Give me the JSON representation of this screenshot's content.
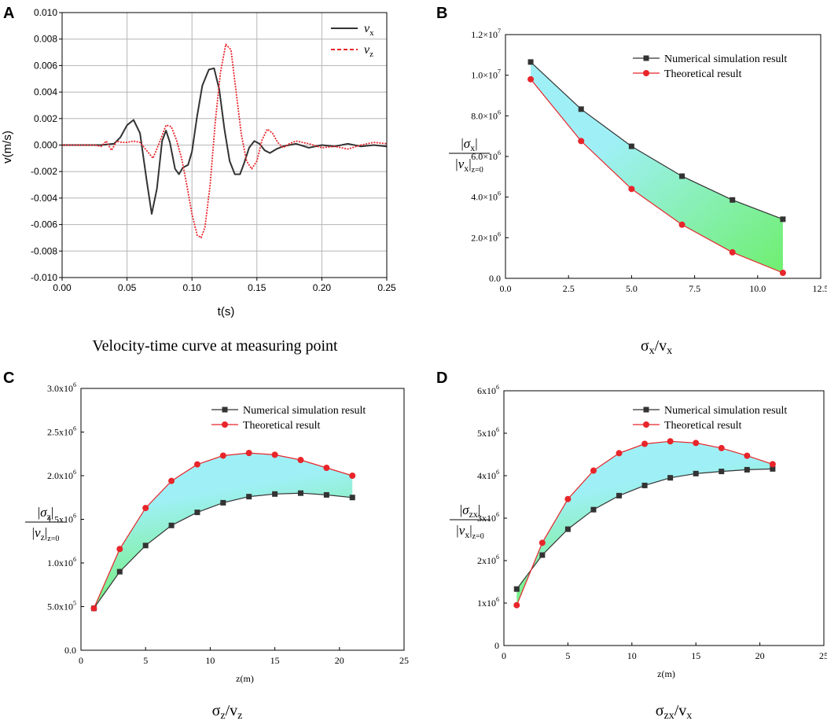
{
  "chart_data": [
    {
      "panel": "A",
      "type": "line",
      "xlabel": "t(s)",
      "ylabel": "v(m/s)",
      "xlim": [
        0,
        0.25
      ],
      "ylim": [
        -0.01,
        0.01
      ],
      "xticks": [
        "0.00",
        "0.05",
        "0.10",
        "0.15",
        "0.20",
        "0.25"
      ],
      "yticks": [
        "0.010",
        "0.008",
        "0.006",
        "0.004",
        "0.002",
        "0.000",
        "-0.002",
        "-0.004",
        "-0.006",
        "-0.008",
        "-0.010"
      ],
      "grid": true,
      "legend": "top-right",
      "caption": "Velocity-time curve at measuring point",
      "series": [
        {
          "name": "vx",
          "legend_main": "v",
          "legend_sub": "x",
          "color": "#333333",
          "style": "solid",
          "x": [
            0,
            0.03,
            0.04,
            0.045,
            0.05,
            0.055,
            0.06,
            0.065,
            0.069,
            0.073,
            0.077,
            0.08,
            0.083,
            0.087,
            0.09,
            0.093,
            0.097,
            0.1,
            0.104,
            0.108,
            0.113,
            0.117,
            0.121,
            0.125,
            0.129,
            0.133,
            0.137,
            0.14,
            0.144,
            0.148,
            0.152,
            0.156,
            0.16,
            0.165,
            0.17,
            0.18,
            0.19,
            0.2,
            0.21,
            0.22,
            0.23,
            0.24,
            0.25
          ],
          "y": [
            0,
            0,
            0.0001,
            0.0006,
            0.0015,
            0.0019,
            0.0009,
            -0.0026,
            -0.0052,
            -0.0033,
            0.0003,
            0.0011,
            0.0002,
            -0.0018,
            -0.0022,
            -0.0017,
            -0.0015,
            -0.0005,
            0.0022,
            0.0045,
            0.0057,
            0.0058,
            0.0042,
            0.0012,
            -0.0012,
            -0.0022,
            -0.0022,
            -0.0014,
            -0.0002,
            0.0003,
            0.0001,
            -0.0004,
            -0.0006,
            -0.0003,
            -0.0001,
            0.0001,
            -0.0002,
            0,
            -0.0001,
            0.0001,
            -0.0001,
            0,
            -0.0001
          ]
        },
        {
          "name": "vz",
          "legend_main": "v",
          "legend_sub": "z",
          "color": "#e8252a",
          "style": "dashed",
          "x": [
            0,
            0.025,
            0.03,
            0.034,
            0.038,
            0.042,
            0.046,
            0.05,
            0.055,
            0.06,
            0.065,
            0.07,
            0.075,
            0.08,
            0.084,
            0.088,
            0.092,
            0.096,
            0.1,
            0.104,
            0.107,
            0.11,
            0.114,
            0.118,
            0.122,
            0.126,
            0.13,
            0.134,
            0.138,
            0.142,
            0.146,
            0.15,
            0.154,
            0.158,
            0.162,
            0.166,
            0.17,
            0.175,
            0.18,
            0.185,
            0.19,
            0.2,
            0.21,
            0.22,
            0.23,
            0.24,
            0.25
          ],
          "y": [
            0,
            0,
            -0.0001,
            0.0003,
            -0.0004,
            0.0003,
            0.0002,
            0.0002,
            0.0003,
            0.0002,
            -0.0004,
            -0.001,
            0.0002,
            0.0015,
            0.0014,
            0.0004,
            -0.001,
            -0.003,
            -0.0052,
            -0.0068,
            -0.007,
            -0.0062,
            -0.003,
            0.0018,
            0.0055,
            0.0076,
            0.0072,
            0.004,
            0.0008,
            -0.0012,
            -0.0018,
            -0.0012,
            0.0004,
            0.0012,
            0.0009,
            0.0002,
            -0.0002,
            0.0001,
            0.0003,
            0.0002,
            0.0001,
            -0.0002,
            -0.0001,
            -0.0003,
            0.0,
            0.0002,
            0.0001
          ]
        }
      ]
    },
    {
      "panel": "B",
      "type": "line",
      "xlim": [
        0,
        12.5
      ],
      "ylim": [
        0,
        12000000
      ],
      "xticks": [
        "0.0",
        "2.5",
        "5.0",
        "7.5",
        "10.0",
        "12.5"
      ],
      "yticks": [
        {
          "mant": "0.0",
          "exp": ""
        },
        {
          "mant": "2.0×10",
          "exp": "6"
        },
        {
          "mant": "4.0×10",
          "exp": "6"
        },
        {
          "mant": "6.0×10",
          "exp": "6"
        },
        {
          "mant": "8.0×10",
          "exp": "6"
        },
        {
          "mant": "1.0×10",
          "exp": "7"
        },
        {
          "mant": "1.2×10",
          "exp": "7"
        }
      ],
      "ylabel": {
        "num": "σ",
        "num_sub": "x",
        "den": "v",
        "den_sub": "x",
        "den_eval": "z=0"
      },
      "legend": "top-right",
      "fill_colors": [
        "#9ff0f6",
        "#6fef6f"
      ],
      "caption": {
        "main": "σ",
        "sub1": "x",
        "mid": "/v",
        "sub2": "x"
      },
      "x": [
        1,
        3,
        5,
        7,
        9,
        11
      ],
      "series": [
        {
          "name": "Numerical simulation result",
          "marker": "square",
          "color": "#333333",
          "values": [
            10650000,
            8330000,
            6500000,
            5030000,
            3860000,
            2910000
          ]
        },
        {
          "name": "Theoretical result",
          "marker": "circle",
          "color": "#e8252a",
          "values": [
            9800000,
            6760000,
            4400000,
            2640000,
            1280000,
            270000
          ]
        }
      ]
    },
    {
      "panel": "C",
      "type": "line",
      "xlabel": "z(m)",
      "xlim": [
        0,
        25
      ],
      "ylim": [
        0,
        3000000
      ],
      "xticks": [
        "0",
        "5",
        "10",
        "15",
        "20",
        "25"
      ],
      "yticks": [
        {
          "mant": "0.0",
          "exp": ""
        },
        {
          "mant": "5.0x10",
          "exp": "5"
        },
        {
          "mant": "1.0x10",
          "exp": "6"
        },
        {
          "mant": "1.5x10",
          "exp": "6"
        },
        {
          "mant": "2.0x10",
          "exp": "6"
        },
        {
          "mant": "2.5x10",
          "exp": "6"
        },
        {
          "mant": "3.0x10",
          "exp": "6"
        }
      ],
      "ylabel": {
        "num": "σ",
        "num_sub": "z",
        "den": "v",
        "den_sub": "z",
        "den_eval": "z=0"
      },
      "legend": "top-right",
      "fill_colors": [
        "#9ff0f6",
        "#6fef6f"
      ],
      "caption": {
        "main": "σ",
        "sub1": "z",
        "mid": "/v",
        "sub2": "z"
      },
      "x": [
        1,
        3,
        5,
        7,
        9,
        11,
        13,
        15,
        17,
        19,
        21
      ],
      "series": [
        {
          "name": "Numerical simulation result",
          "marker": "square",
          "color": "#333333",
          "values": [
            480000,
            900000,
            1200000,
            1430000,
            1580000,
            1690000,
            1760000,
            1790000,
            1800000,
            1780000,
            1750000
          ]
        },
        {
          "name": "Theoretical result",
          "marker": "circle",
          "color": "#e8252a",
          "values": [
            480000,
            1160000,
            1630000,
            1940000,
            2130000,
            2230000,
            2260000,
            2240000,
            2180000,
            2090000,
            2000000
          ]
        }
      ]
    },
    {
      "panel": "D",
      "type": "line",
      "xlabel": "z(m)",
      "xlim": [
        0,
        25
      ],
      "ylim": [
        0,
        6000000
      ],
      "xticks": [
        "0",
        "5",
        "10",
        "15",
        "20",
        "25"
      ],
      "yticks": [
        {
          "mant": "0",
          "exp": ""
        },
        {
          "mant": "1x10",
          "exp": "6"
        },
        {
          "mant": "2x10",
          "exp": "6"
        },
        {
          "mant": "3x10",
          "exp": "6"
        },
        {
          "mant": "4x10",
          "exp": "6"
        },
        {
          "mant": "5x10",
          "exp": "6"
        },
        {
          "mant": "6x10",
          "exp": "6"
        }
      ],
      "ylabel": {
        "num": "σ",
        "num_sub": "zx",
        "den": "v",
        "den_sub": "x",
        "den_eval": "z=0"
      },
      "legend": "top-right",
      "fill_colors": [
        "#9ff0f6",
        "#6fef6f"
      ],
      "caption": {
        "main": "σ",
        "sub1": "zx",
        "mid": "/v",
        "sub2": "x"
      },
      "x": [
        1,
        3,
        5,
        7,
        9,
        11,
        13,
        15,
        17,
        19,
        21
      ],
      "series": [
        {
          "name": "Numerical simulation result",
          "marker": "square",
          "color": "#333333",
          "values": [
            1330000,
            2130000,
            2740000,
            3200000,
            3530000,
            3770000,
            3950000,
            4050000,
            4100000,
            4140000,
            4160000
          ]
        },
        {
          "name": "Theoretical result",
          "marker": "circle",
          "color": "#e8252a",
          "values": [
            950000,
            2420000,
            3450000,
            4120000,
            4530000,
            4750000,
            4810000,
            4770000,
            4650000,
            4470000,
            4270000
          ]
        }
      ]
    }
  ]
}
